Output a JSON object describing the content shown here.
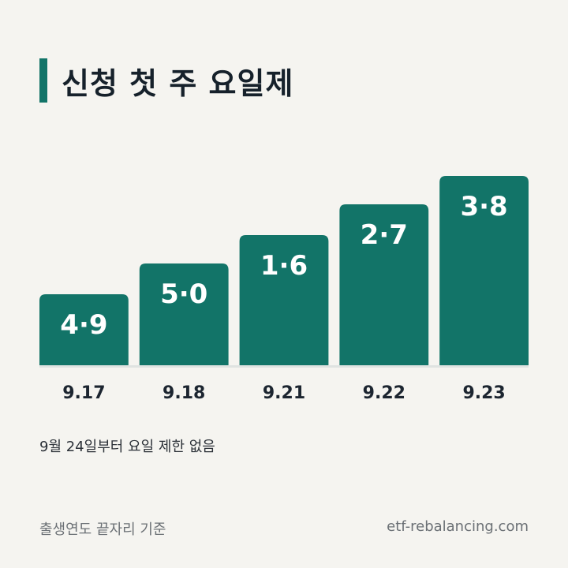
{
  "title": "신청 첫 주 요일제",
  "note": "9월 24일부터 요일 제한 없음",
  "footer": {
    "left": "출생연도 끝자리 기준",
    "right": "etf-rebalancing.com"
  },
  "colors": {
    "bar": "#127468",
    "accent": "#127468",
    "baseline": "#dfe3e1"
  },
  "chart_data": {
    "type": "bar",
    "title": "신청 첫 주 요일제",
    "categories": [
      "9.17",
      "9.18",
      "9.21",
      "9.22",
      "9.23"
    ],
    "labels": [
      "4·9",
      "5·0",
      "1·6",
      "2·7",
      "3·8"
    ],
    "xlabel": "",
    "ylabel": "",
    "grid": false,
    "legend": "none"
  }
}
